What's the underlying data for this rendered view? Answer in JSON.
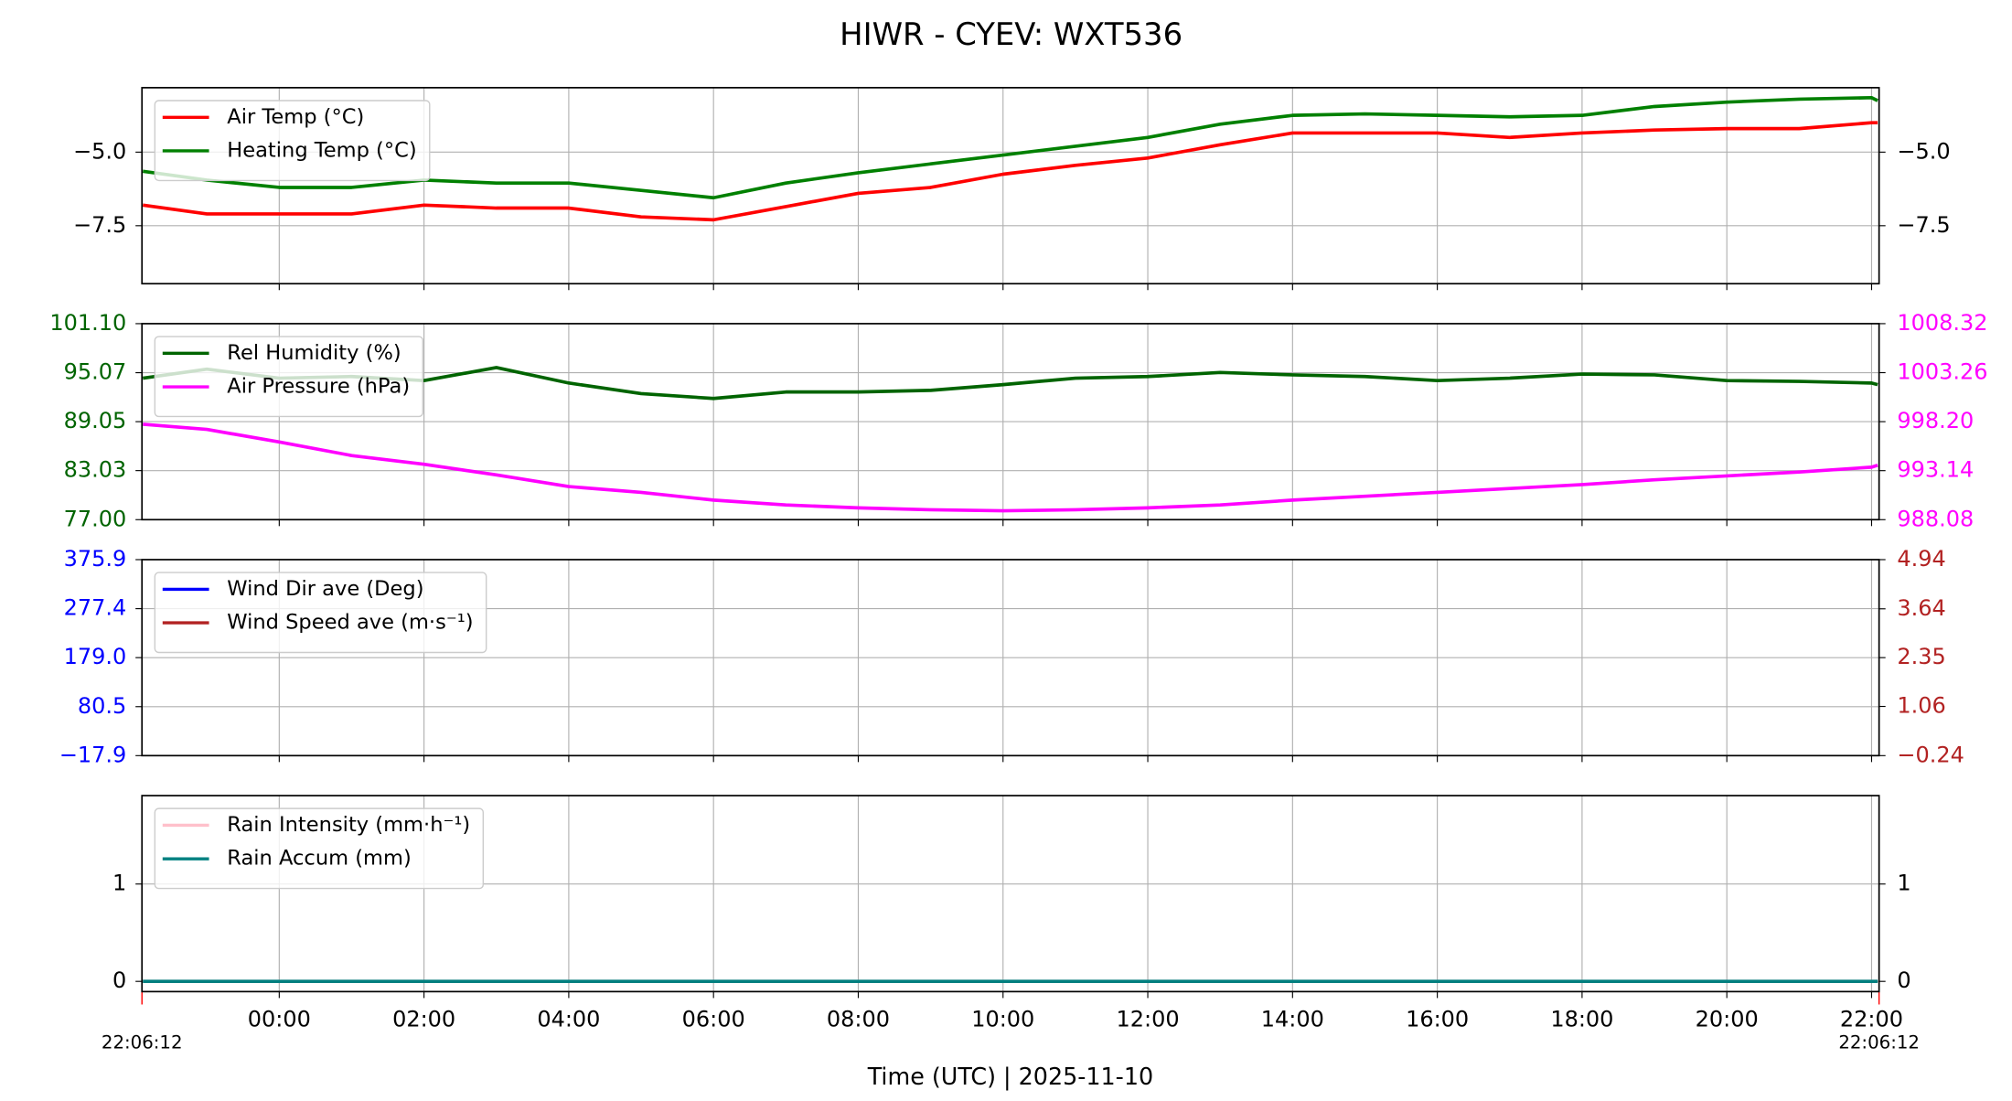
{
  "title": "HIWR - CYEV: WXT536",
  "chart_data": [
    {
      "type": "line",
      "x": [
        "22:07",
        "23:00",
        "00:00",
        "01:00",
        "02:00",
        "03:00",
        "04:00",
        "05:00",
        "06:00",
        "07:00",
        "08:00",
        "09:00",
        "10:00",
        "11:00",
        "12:00",
        "13:00",
        "14:00",
        "15:00",
        "16:00",
        "17:00",
        "18:00",
        "19:00",
        "20:00",
        "21:00",
        "22:00",
        "22:05"
      ],
      "xlim": [
        "22:06:12",
        "22:06:12"
      ],
      "xticks": [
        "00:00",
        "02:00",
        "04:00",
        "06:00",
        "08:00",
        "10:00",
        "12:00",
        "14:00",
        "16:00",
        "18:00",
        "20:00",
        "22:00"
      ],
      "ylim": [
        -9.47,
        -2.81
      ],
      "yticks": [
        {
          "value": -7.5,
          "label": "−7.5"
        },
        {
          "value": -5,
          "label": "−5.0"
        }
      ],
      "y2lim": [
        -9.47,
        -2.81
      ],
      "y2ticks": [
        {
          "value": -7.5,
          "label": "−7.5"
        },
        {
          "value": -5,
          "label": "−5.0"
        }
      ],
      "tick_color": "#000000",
      "y2_tick_color": "#000000",
      "grid": true,
      "legend": "upper-left",
      "series": [
        {
          "name": "Air Temp (°C)",
          "color": "#ff0000",
          "values": [
            -6.8,
            -7.1,
            -7.1,
            -7.1,
            -6.8,
            -6.9,
            -6.9,
            -7.2,
            -7.3,
            -6.85,
            -6.4,
            -6.2,
            -5.75,
            -5.45,
            -5.2,
            -4.75,
            -4.35,
            -4.35,
            -4.35,
            -4.5,
            -4.35,
            -4.25,
            -4.2,
            -4.2,
            -4.0,
            -4.0
          ]
        },
        {
          "name": "Heating Temp (°C)",
          "color": "#008000",
          "values": [
            -5.65,
            -5.95,
            -6.2,
            -6.2,
            -5.95,
            -6.05,
            -6.05,
            -6.3,
            -6.55,
            -6.05,
            -5.7,
            -5.4,
            -5.1,
            -4.8,
            -4.5,
            -4.05,
            -3.75,
            -3.7,
            -3.75,
            -3.8,
            -3.75,
            -3.45,
            -3.3,
            -3.2,
            -3.15,
            -3.25
          ]
        }
      ]
    },
    {
      "type": "line",
      "x": [
        "22:07",
        "23:00",
        "00:00",
        "01:00",
        "02:00",
        "03:00",
        "04:00",
        "05:00",
        "06:00",
        "07:00",
        "08:00",
        "09:00",
        "10:00",
        "11:00",
        "12:00",
        "13:00",
        "14:00",
        "15:00",
        "16:00",
        "17:00",
        "18:00",
        "19:00",
        "20:00",
        "21:00",
        "22:00",
        "22:05"
      ],
      "xlim": [
        "22:06:12",
        "22:06:12"
      ],
      "xticks": [
        "00:00",
        "02:00",
        "04:00",
        "06:00",
        "08:00",
        "10:00",
        "12:00",
        "14:00",
        "16:00",
        "18:00",
        "20:00",
        "22:00"
      ],
      "ylim": [
        77,
        101.1
      ],
      "yticks": [
        {
          "value": 77,
          "label": "77.00"
        },
        83.03,
        89.05,
        95.07,
        {
          "value": 101.1,
          "label": "101.10"
        }
      ],
      "y2lim": [
        988.08,
        1008.32
      ],
      "y2ticks": [
        988.08,
        993.14,
        {
          "value": 998.2,
          "label": "998.20"
        },
        1003.26,
        1008.32
      ],
      "tick_color": "#006400",
      "y2_tick_color": "#ff00ff",
      "grid": true,
      "legend": "upper-left",
      "series": [
        {
          "name": "Rel Humidity (%)",
          "color": "#006400",
          "values": [
            94.4,
            95.5,
            94.4,
            94.6,
            94.1,
            95.7,
            93.8,
            92.5,
            91.9,
            92.7,
            92.7,
            92.9,
            93.6,
            94.4,
            94.6,
            95.1,
            94.8,
            94.6,
            94.1,
            94.4,
            94.9,
            94.8,
            94.1,
            94.0,
            93.8,
            93.6
          ]
        },
        {
          "name": "Air Pressure (hPa)",
          "color": "#ff00ff",
          "axis": "y2",
          "values": [
            997.93,
            997.4,
            996.1,
            994.7,
            993.8,
            992.7,
            991.5,
            990.9,
            990.1,
            989.6,
            989.3,
            989.1,
            989.0,
            989.1,
            989.3,
            989.6,
            990.1,
            990.5,
            990.9,
            991.3,
            991.7,
            992.2,
            992.6,
            993.0,
            993.5,
            993.7
          ]
        }
      ]
    },
    {
      "type": "line",
      "x": [],
      "xlim": [
        "22:06:12",
        "22:06:12"
      ],
      "xticks": [
        "00:00",
        "02:00",
        "04:00",
        "06:00",
        "08:00",
        "10:00",
        "12:00",
        "14:00",
        "16:00",
        "18:00",
        "20:00",
        "22:00"
      ],
      "ylim": [
        -17.9,
        375.9
      ],
      "yticks": [
        {
          "value": -17.9,
          "label": "−17.9"
        },
        80.5,
        {
          "value": 179,
          "label": "179.0"
        },
        277.4,
        375.9
      ],
      "y2lim": [
        -0.24,
        4.94
      ],
      "y2ticks": [
        {
          "value": -0.24,
          "label": "−0.24"
        },
        1.06,
        2.35,
        3.64,
        4.94
      ],
      "tick_color": "#0000ff",
      "y2_tick_color": "#b22222",
      "grid": true,
      "legend": "upper-left",
      "series": [
        {
          "name": "Wind Dir ave (Deg)",
          "color": "#0000ff",
          "values": []
        },
        {
          "name": "Wind Speed ave (m·s⁻¹)",
          "color": "#b22222",
          "axis": "y2",
          "values": []
        }
      ]
    },
    {
      "type": "line",
      "x": [
        "22:07",
        "22:05"
      ],
      "xlim": [
        "22:06:12",
        "22:06:12"
      ],
      "xticks": [
        "00:00",
        "02:00",
        "04:00",
        "06:00",
        "08:00",
        "10:00",
        "12:00",
        "14:00",
        "16:00",
        "18:00",
        "20:00",
        "22:00"
      ],
      "xticklabels": true,
      "xlabel": "Time (UTC)  |  2025-11-10",
      "ylim": [
        -0.105,
        1.908
      ],
      "yticks": [
        0,
        1
      ],
      "y2lim": [
        -0.105,
        1.908
      ],
      "y2ticks": [
        0,
        1
      ],
      "tick_color": "#000000",
      "y2_tick_color": "#000000",
      "grid": true,
      "legend": "upper-left",
      "series": [
        {
          "name": "Rain Intensity (mm·h⁻¹)",
          "color": "#ffc0cb",
          "values": [
            0,
            0
          ]
        },
        {
          "name": "Rain Accum (mm)",
          "color": "#008080",
          "values": [
            0,
            0
          ]
        }
      ]
    }
  ]
}
